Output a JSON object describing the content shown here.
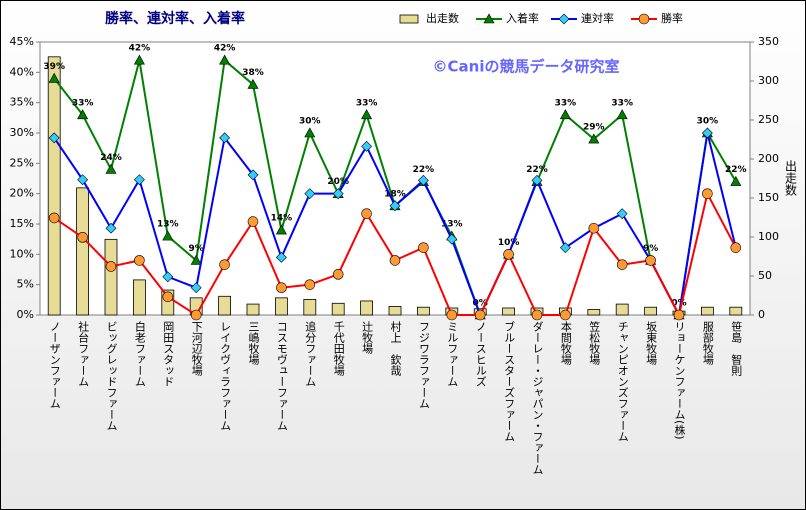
{
  "chart_data": {
    "type": "combo",
    "title": "勝率、連対率、入着率",
    "watermark": "©Caniの競馬データ研究室",
    "y2label": "出走数",
    "categories": [
      "ノーザンファーム",
      "社台ファーム",
      "ビッグレッドファーム",
      "白老ファーム",
      "岡田スタッド",
      "下河辺牧場",
      "レイクヴィラファーム",
      "三嶋牧場",
      "コスモヴューファーム",
      "追分ファーム",
      "千代田牧場",
      "辻牧場",
      "村上　欽哉",
      "フジワラファーム",
      "ミルファーム",
      "ノースヒルズ",
      "ブルースターズファーム",
      "ダーレー・ジャパン・ファーム",
      "本間牧場",
      "笠松牧場",
      "チャンピオンズファーム",
      "坂東牧場",
      "リョーケンファーム(株)",
      "服部牧場",
      "笹島　智則"
    ],
    "series": [
      {
        "name": "出走数",
        "type": "bar",
        "axis": "y2",
        "color": "#e6dc96",
        "values": [
          331,
          163,
          97,
          45,
          32,
          22,
          24,
          14,
          22,
          20,
          15,
          18,
          11,
          10,
          9,
          8,
          9,
          9,
          9,
          7,
          14,
          10,
          5,
          10,
          10
        ]
      },
      {
        "name": "入着率",
        "type": "line",
        "marker": "triangle",
        "color": "#008000",
        "values": [
          39,
          33,
          24,
          42,
          13,
          9,
          42,
          38,
          14,
          30,
          20,
          33,
          18,
          22,
          13,
          0,
          10,
          22,
          33,
          29,
          33,
          9,
          0,
          30,
          22
        ],
        "value_labels": [
          "39%",
          "33%",
          "24%",
          "42%",
          "13%",
          "9%",
          "42%",
          "38%",
          "14%",
          "30%",
          "20%",
          "33%",
          "18%",
          "22%",
          "13%",
          "0%",
          "10%",
          "22%",
          "33%",
          "29%",
          "33%",
          "9%",
          "0%",
          "30%",
          "22%"
        ]
      },
      {
        "name": "連対率",
        "type": "line",
        "marker": "diamond",
        "color": "#0000ff",
        "values": [
          29.2,
          22.3,
          14.3,
          22.3,
          6.3,
          4.5,
          29.2,
          23.1,
          9.5,
          20,
          20,
          27.8,
          18,
          22.2,
          12.5,
          0,
          10,
          22.2,
          11.1,
          14.3,
          16.7,
          9,
          0,
          30,
          11.1
        ]
      },
      {
        "name": "勝率",
        "type": "line",
        "marker": "circle",
        "color": "#ff0000",
        "values": [
          16,
          12.8,
          8,
          9,
          3,
          0,
          8.3,
          15.4,
          4.5,
          5,
          6.7,
          16.7,
          9,
          11.1,
          0,
          0,
          10,
          0,
          0,
          14.3,
          8.3,
          9,
          0,
          20,
          11.1
        ]
      }
    ],
    "ylim": [
      0,
      45
    ],
    "yticks": [
      {
        "value": 0,
        "label": "0%"
      },
      {
        "value": 5,
        "label": "5%"
      },
      {
        "value": 10,
        "label": "10%"
      },
      {
        "value": 15,
        "label": "15%"
      },
      {
        "value": 20,
        "label": "20%"
      },
      {
        "value": 25,
        "label": "25%"
      },
      {
        "value": 30,
        "label": "30%"
      },
      {
        "value": 35,
        "label": "35%"
      },
      {
        "value": 40,
        "label": "40%"
      },
      {
        "value": 45,
        "label": "45%"
      }
    ],
    "y2lim": [
      0,
      350
    ],
    "y2ticks": [
      0,
      50,
      100,
      150,
      200,
      250,
      300,
      350
    ],
    "grid": false
  }
}
